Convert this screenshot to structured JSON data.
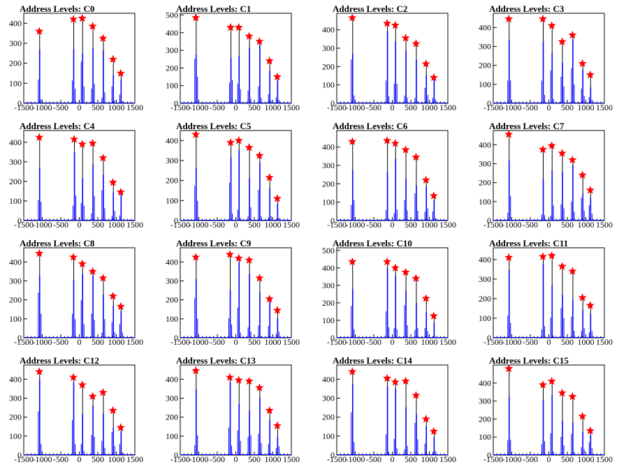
{
  "colors": {
    "histogram": "#0000ff",
    "marker": "#ff0000",
    "axis": "#000000",
    "background": "#ffffff"
  },
  "chart_data": [
    {
      "type": "bar",
      "title": "Address Levels: C0",
      "xlim": [
        -1500,
        1500
      ],
      "ylim": [
        0,
        450
      ],
      "xticks": [
        "-1500",
        "-1000",
        "-500",
        "0",
        "500",
        "1000",
        "1500"
      ],
      "yticks": [
        "0",
        "100",
        "200",
        "300",
        "400"
      ],
      "peaks": [
        {
          "x": -1080,
          "y": 360
        },
        {
          "x": -160,
          "y": 420
        },
        {
          "x": 80,
          "y": 425
        },
        {
          "x": 360,
          "y": 385
        },
        {
          "x": 640,
          "y": 325
        },
        {
          "x": 910,
          "y": 220
        },
        {
          "x": 1120,
          "y": 150
        }
      ]
    },
    {
      "type": "bar",
      "title": "Address Levels: C1",
      "xlim": [
        -1500,
        1500
      ],
      "ylim": [
        0,
        510
      ],
      "xticks": [
        "-1500",
        "-1000",
        "-500",
        "0",
        "500",
        "1000",
        "1500"
      ],
      "yticks": [
        "0",
        "100",
        "200",
        "300",
        "400",
        "500"
      ],
      "peaks": [
        {
          "x": -1080,
          "y": 485
        },
        {
          "x": -140,
          "y": 430
        },
        {
          "x": 80,
          "y": 430
        },
        {
          "x": 360,
          "y": 380
        },
        {
          "x": 640,
          "y": 350
        },
        {
          "x": 910,
          "y": 240
        },
        {
          "x": 1120,
          "y": 150
        }
      ]
    },
    {
      "type": "bar",
      "title": "Address Levels: C2",
      "xlim": [
        -1500,
        1500
      ],
      "ylim": [
        0,
        490
      ],
      "xticks": [
        "-1500",
        "-1000",
        "-500",
        "0",
        "500",
        "1000",
        "1500"
      ],
      "yticks": [
        "0",
        "100",
        "200",
        "300",
        "400"
      ],
      "peaks": [
        {
          "x": -1080,
          "y": 465
        },
        {
          "x": -140,
          "y": 435
        },
        {
          "x": 80,
          "y": 425
        },
        {
          "x": 360,
          "y": 355
        },
        {
          "x": 640,
          "y": 325
        },
        {
          "x": 910,
          "y": 215
        },
        {
          "x": 1120,
          "y": 140
        }
      ]
    },
    {
      "type": "bar",
      "title": "Address Levels: C3",
      "xlim": [
        -1500,
        1500
      ],
      "ylim": [
        0,
        475
      ],
      "xticks": [
        "-1500",
        "-1000",
        "-500",
        "0",
        "500",
        "1000",
        "1500"
      ],
      "yticks": [
        "0",
        "100",
        "200",
        "300",
        "400"
      ],
      "peaks": [
        {
          "x": -1080,
          "y": 445
        },
        {
          "x": -160,
          "y": 445
        },
        {
          "x": 80,
          "y": 410
        },
        {
          "x": 360,
          "y": 325
        },
        {
          "x": 640,
          "y": 360
        },
        {
          "x": 910,
          "y": 210
        },
        {
          "x": 1120,
          "y": 150
        }
      ]
    },
    {
      "type": "bar",
      "title": "Address Levels: C4",
      "xlim": [
        -1500,
        1500
      ],
      "ylim": [
        0,
        460
      ],
      "xticks": [
        "-1500",
        "-1000",
        "-500",
        "0",
        "500",
        "1000",
        "1500"
      ],
      "yticks": [
        "0",
        "100",
        "200",
        "300",
        "400"
      ],
      "peaks": [
        {
          "x": -1080,
          "y": 425
        },
        {
          "x": -140,
          "y": 415
        },
        {
          "x": 80,
          "y": 390
        },
        {
          "x": 360,
          "y": 395
        },
        {
          "x": 640,
          "y": 320
        },
        {
          "x": 910,
          "y": 195
        },
        {
          "x": 1120,
          "y": 145
        }
      ]
    },
    {
      "type": "bar",
      "title": "Address Levels: C5",
      "xlim": [
        -1500,
        1500
      ],
      "ylim": [
        0,
        450
      ],
      "xticks": [
        "-1500",
        "-1000",
        "-500",
        "0",
        "500",
        "1000",
        "1500"
      ],
      "yticks": [
        "0",
        "100",
        "200",
        "300",
        "400"
      ],
      "peaks": [
        {
          "x": -1080,
          "y": 430
        },
        {
          "x": -140,
          "y": 390
        },
        {
          "x": 80,
          "y": 400
        },
        {
          "x": 360,
          "y": 365
        },
        {
          "x": 640,
          "y": 325
        },
        {
          "x": 910,
          "y": 215
        },
        {
          "x": 1120,
          "y": 110
        }
      ]
    },
    {
      "type": "bar",
      "title": "Address Levels: C6",
      "xlim": [
        -1500,
        1500
      ],
      "ylim": [
        0,
        490
      ],
      "xticks": [
        "-1500",
        "-1000",
        "-500",
        "0",
        "500",
        "1000",
        "1500"
      ],
      "yticks": [
        "0",
        "100",
        "200",
        "300",
        "400"
      ],
      "peaks": [
        {
          "x": -1080,
          "y": 430
        },
        {
          "x": -140,
          "y": 435
        },
        {
          "x": 80,
          "y": 420
        },
        {
          "x": 360,
          "y": 385
        },
        {
          "x": 640,
          "y": 345
        },
        {
          "x": 910,
          "y": 220
        },
        {
          "x": 1120,
          "y": 135
        }
      ]
    },
    {
      "type": "bar",
      "title": "Address Levels: C7",
      "xlim": [
        -1500,
        1500
      ],
      "ylim": [
        0,
        475
      ],
      "xticks": [
        "-1500",
        "-1000",
        "-500",
        "0",
        "500",
        "1000",
        "1500"
      ],
      "yticks": [
        "0",
        "100",
        "200",
        "300",
        "400"
      ],
      "peaks": [
        {
          "x": -1080,
          "y": 455
        },
        {
          "x": -160,
          "y": 375
        },
        {
          "x": 80,
          "y": 395
        },
        {
          "x": 360,
          "y": 355
        },
        {
          "x": 640,
          "y": 320
        },
        {
          "x": 910,
          "y": 240
        },
        {
          "x": 1120,
          "y": 160
        }
      ]
    },
    {
      "type": "bar",
      "title": "Address Levels: C8",
      "xlim": [
        -1500,
        1500
      ],
      "ylim": [
        0,
        475
      ],
      "xticks": [
        "-1500",
        "-1000",
        "-500",
        "0",
        "500",
        "1000",
        "1500"
      ],
      "yticks": [
        "0",
        "100",
        "200",
        "300",
        "400"
      ],
      "peaks": [
        {
          "x": -1080,
          "y": 445
        },
        {
          "x": -160,
          "y": 425
        },
        {
          "x": 80,
          "y": 390
        },
        {
          "x": 360,
          "y": 350
        },
        {
          "x": 640,
          "y": 315
        },
        {
          "x": 910,
          "y": 220
        },
        {
          "x": 1120,
          "y": 165
        }
      ]
    },
    {
      "type": "bar",
      "title": "Address Levels: C9",
      "xlim": [
        -1500,
        1500
      ],
      "ylim": [
        0,
        475
      ],
      "xticks": [
        "-1500",
        "-1000",
        "-500",
        "0",
        "500",
        "1000",
        "1500"
      ],
      "yticks": [
        "0",
        "100",
        "200",
        "300",
        "400"
      ],
      "peaks": [
        {
          "x": -1080,
          "y": 425
        },
        {
          "x": -160,
          "y": 440
        },
        {
          "x": 80,
          "y": 420
        },
        {
          "x": 360,
          "y": 410
        },
        {
          "x": 640,
          "y": 315
        },
        {
          "x": 910,
          "y": 205
        },
        {
          "x": 1120,
          "y": 145
        }
      ]
    },
    {
      "type": "bar",
      "title": "Address Levels: C10",
      "xlim": [
        -1500,
        1500
      ],
      "ylim": [
        0,
        515
      ],
      "xticks": [
        "-1500",
        "-1000",
        "-500",
        "0",
        "500",
        "1000",
        "1500"
      ],
      "yticks": [
        "0",
        "100",
        "200",
        "300",
        "400",
        "500"
      ],
      "peaks": [
        {
          "x": -1080,
          "y": 435
        },
        {
          "x": -140,
          "y": 435
        },
        {
          "x": 80,
          "y": 400
        },
        {
          "x": 360,
          "y": 375
        },
        {
          "x": 640,
          "y": 340
        },
        {
          "x": 910,
          "y": 225
        },
        {
          "x": 1120,
          "y": 125
        }
      ]
    },
    {
      "type": "bar",
      "title": "Address Levels: C11",
      "xlim": [
        -1500,
        1500
      ],
      "ylim": [
        0,
        460
      ],
      "xticks": [
        "-1500",
        "-1000",
        "-500",
        "0",
        "500",
        "1000",
        "1500"
      ],
      "yticks": [
        "0",
        "100",
        "200",
        "300",
        "400"
      ],
      "peaks": [
        {
          "x": -1080,
          "y": 410
        },
        {
          "x": -160,
          "y": 415
        },
        {
          "x": 80,
          "y": 420
        },
        {
          "x": 360,
          "y": 365
        },
        {
          "x": 640,
          "y": 340
        },
        {
          "x": 910,
          "y": 205
        },
        {
          "x": 1120,
          "y": 165
        }
      ]
    },
    {
      "type": "bar",
      "title": "Address Levels: C12",
      "xlim": [
        -1500,
        1500
      ],
      "ylim": [
        0,
        475
      ],
      "xticks": [
        "-1500",
        "-1000",
        "-500",
        "0",
        "500",
        "1000",
        "1500"
      ],
      "yticks": [
        "0",
        "100",
        "200",
        "300",
        "400"
      ],
      "peaks": [
        {
          "x": -1080,
          "y": 440
        },
        {
          "x": -160,
          "y": 410
        },
        {
          "x": 80,
          "y": 370
        },
        {
          "x": 360,
          "y": 310
        },
        {
          "x": 640,
          "y": 330
        },
        {
          "x": 910,
          "y": 235
        },
        {
          "x": 1120,
          "y": 145
        }
      ]
    },
    {
      "type": "bar",
      "title": "Address Levels: C13",
      "xlim": [
        -1500,
        1500
      ],
      "ylim": [
        0,
        475
      ],
      "xticks": [
        "-1500",
        "-1000",
        "-500",
        "0",
        "500",
        "1000",
        "1500"
      ],
      "yticks": [
        "0",
        "100",
        "200",
        "300",
        "400"
      ],
      "peaks": [
        {
          "x": -1080,
          "y": 445
        },
        {
          "x": -160,
          "y": 410
        },
        {
          "x": 80,
          "y": 395
        },
        {
          "x": 360,
          "y": 390
        },
        {
          "x": 640,
          "y": 355
        },
        {
          "x": 910,
          "y": 235
        },
        {
          "x": 1120,
          "y": 155
        }
      ]
    },
    {
      "type": "bar",
      "title": "Address Levels: C14",
      "xlim": [
        -1500,
        1500
      ],
      "ylim": [
        0,
        475
      ],
      "xticks": [
        "-1500",
        "-1000",
        "-500",
        "0",
        "500",
        "1000",
        "1500"
      ],
      "yticks": [
        "0",
        "100",
        "200",
        "300",
        "400"
      ],
      "peaks": [
        {
          "x": -1080,
          "y": 440
        },
        {
          "x": -140,
          "y": 405
        },
        {
          "x": 80,
          "y": 385
        },
        {
          "x": 360,
          "y": 390
        },
        {
          "x": 640,
          "y": 315
        },
        {
          "x": 910,
          "y": 190
        },
        {
          "x": 1120,
          "y": 125
        }
      ]
    },
    {
      "type": "bar",
      "title": "Address Levels: C15",
      "xlim": [
        -1500,
        1500
      ],
      "ylim": [
        0,
        500
      ],
      "xticks": [
        "-1500",
        "-1000",
        "-500",
        "0",
        "500",
        "1000",
        "1500"
      ],
      "yticks": [
        "0",
        "100",
        "200",
        "300",
        "400"
      ],
      "peaks": [
        {
          "x": -1080,
          "y": 480
        },
        {
          "x": -160,
          "y": 390
        },
        {
          "x": 80,
          "y": 410
        },
        {
          "x": 360,
          "y": 345
        },
        {
          "x": 640,
          "y": 325
        },
        {
          "x": 910,
          "y": 215
        },
        {
          "x": 1120,
          "y": 135
        }
      ]
    }
  ]
}
